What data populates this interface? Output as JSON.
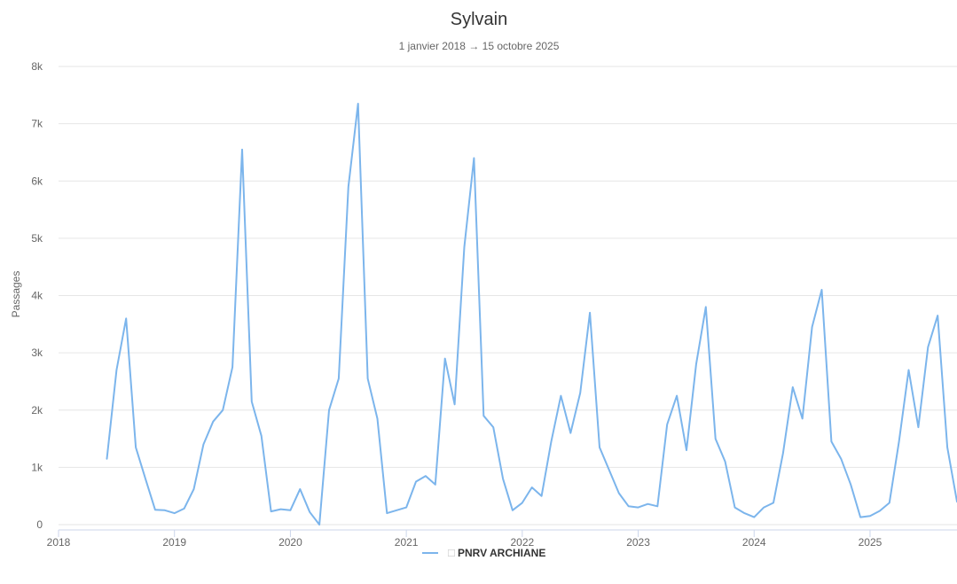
{
  "chart_data": {
    "type": "line",
    "title": "Sylvain",
    "subtitle": "1 janvier 2018 → 15 octobre 2025",
    "ylabel": "Passages",
    "xlabel": "",
    "ylim": [
      0,
      8000
    ],
    "y_ticks": [
      {
        "value": 0,
        "label": "0"
      },
      {
        "value": 1000,
        "label": "1k"
      },
      {
        "value": 2000,
        "label": "2k"
      },
      {
        "value": 3000,
        "label": "3k"
      },
      {
        "value": 4000,
        "label": "4k"
      },
      {
        "value": 5000,
        "label": "5k"
      },
      {
        "value": 6000,
        "label": "6k"
      },
      {
        "value": 7000,
        "label": "7k"
      },
      {
        "value": 8000,
        "label": "8k"
      }
    ],
    "xlim": [
      "2018-01",
      "2025-10"
    ],
    "x_ticks": [
      "2018",
      "2019",
      "2020",
      "2021",
      "2022",
      "2023",
      "2024",
      "2025"
    ],
    "grid": true,
    "legend_position": "bottom-center",
    "series": [
      {
        "name": "PNRV ARCHIANE",
        "color": "#7cb5ec",
        "points": [
          [
            "2018-06",
            1150
          ],
          [
            "2018-07",
            2700
          ],
          [
            "2018-08",
            3600
          ],
          [
            "2018-09",
            1350
          ],
          [
            "2018-10",
            800
          ],
          [
            "2018-11",
            260
          ],
          [
            "2018-12",
            250
          ],
          [
            "2019-01",
            200
          ],
          [
            "2019-02",
            280
          ],
          [
            "2019-03",
            620
          ],
          [
            "2019-04",
            1400
          ],
          [
            "2019-05",
            1800
          ],
          [
            "2019-06",
            2000
          ],
          [
            "2019-07",
            2750
          ],
          [
            "2019-08",
            6550
          ],
          [
            "2019-09",
            2150
          ],
          [
            "2019-10",
            1550
          ],
          [
            "2019-11",
            230
          ],
          [
            "2019-12",
            270
          ],
          [
            "2020-01",
            250
          ],
          [
            "2020-02",
            620
          ],
          [
            "2020-03",
            220
          ],
          [
            "2020-04",
            0
          ],
          [
            "2020-05",
            2000
          ],
          [
            "2020-06",
            2550
          ],
          [
            "2020-07",
            5900
          ],
          [
            "2020-08",
            7350
          ],
          [
            "2020-09",
            2550
          ],
          [
            "2020-10",
            1850
          ],
          [
            "2020-11",
            200
          ],
          [
            "2020-12",
            250
          ],
          [
            "2021-01",
            300
          ],
          [
            "2021-02",
            750
          ],
          [
            "2021-03",
            850
          ],
          [
            "2021-04",
            700
          ],
          [
            "2021-05",
            2900
          ],
          [
            "2021-06",
            2100
          ],
          [
            "2021-07",
            4850
          ],
          [
            "2021-08",
            6400
          ],
          [
            "2021-09",
            1900
          ],
          [
            "2021-10",
            1700
          ],
          [
            "2021-11",
            800
          ],
          [
            "2021-12",
            250
          ],
          [
            "2022-01",
            380
          ],
          [
            "2022-02",
            650
          ],
          [
            "2022-03",
            500
          ],
          [
            "2022-04",
            1450
          ],
          [
            "2022-05",
            2250
          ],
          [
            "2022-06",
            1600
          ],
          [
            "2022-07",
            2300
          ],
          [
            "2022-08",
            3700
          ],
          [
            "2022-09",
            1350
          ],
          [
            "2022-10",
            950
          ],
          [
            "2022-11",
            550
          ],
          [
            "2022-12",
            320
          ],
          [
            "2023-01",
            300
          ],
          [
            "2023-02",
            360
          ],
          [
            "2023-03",
            320
          ],
          [
            "2023-04",
            1750
          ],
          [
            "2023-05",
            2250
          ],
          [
            "2023-06",
            1300
          ],
          [
            "2023-07",
            2800
          ],
          [
            "2023-08",
            3800
          ],
          [
            "2023-09",
            1500
          ],
          [
            "2023-10",
            1100
          ],
          [
            "2023-11",
            300
          ],
          [
            "2023-12",
            200
          ],
          [
            "2024-01",
            130
          ],
          [
            "2024-02",
            300
          ],
          [
            "2024-03",
            380
          ],
          [
            "2024-04",
            1250
          ],
          [
            "2024-05",
            2400
          ],
          [
            "2024-06",
            1850
          ],
          [
            "2024-07",
            3450
          ],
          [
            "2024-08",
            4100
          ],
          [
            "2024-09",
            1450
          ],
          [
            "2024-10",
            1150
          ],
          [
            "2024-11",
            700
          ],
          [
            "2024-12",
            130
          ],
          [
            "2025-01",
            150
          ],
          [
            "2025-02",
            240
          ],
          [
            "2025-03",
            380
          ],
          [
            "2025-04",
            1450
          ],
          [
            "2025-05",
            2700
          ],
          [
            "2025-06",
            1700
          ],
          [
            "2025-07",
            3100
          ],
          [
            "2025-08",
            3650
          ],
          [
            "2025-09",
            1350
          ],
          [
            "2025-10",
            400
          ]
        ]
      }
    ]
  }
}
